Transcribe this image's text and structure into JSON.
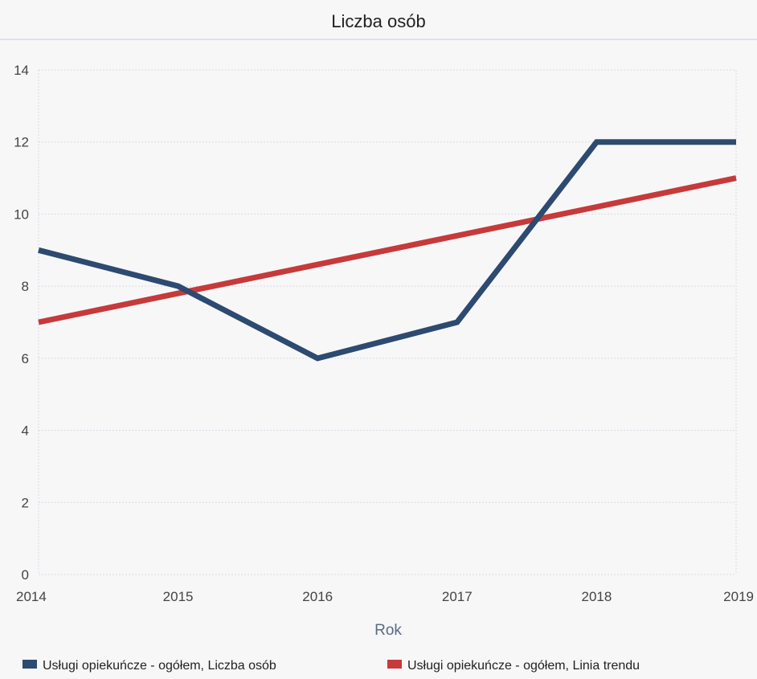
{
  "chart_data": {
    "type": "line",
    "title": "Liczba osób",
    "xlabel": "Rok",
    "ylabel": "",
    "x": [
      "2014",
      "2015",
      "2016",
      "2017",
      "2018",
      "2019"
    ],
    "ylim": [
      0,
      14
    ],
    "yticks": [
      "0",
      "2",
      "4",
      "6",
      "8",
      "10",
      "12",
      "14"
    ],
    "grid": true,
    "legend_position": "bottom",
    "series": [
      {
        "name": "Usługi opiekuńcze - ogółem, Liczba osób",
        "color": "#2d4a70",
        "values": [
          9,
          8,
          6,
          7,
          12,
          12
        ]
      },
      {
        "name": "Usługi opiekuńcze - ogółem, Linia trendu",
        "color": "#c63a3a",
        "values": [
          7,
          7.8,
          8.6,
          9.4,
          10.2,
          11
        ]
      }
    ]
  }
}
